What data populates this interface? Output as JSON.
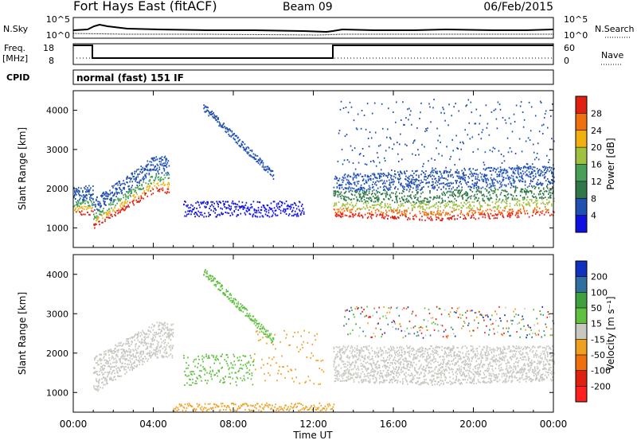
{
  "header": {
    "station": "Fort Hays East (fitACF)",
    "beam": "Beam 09",
    "date": "06/Feb/2015"
  },
  "status_panels": {
    "nsky": {
      "label": "N.Sky",
      "ticks": [
        "10^5",
        "10^0"
      ],
      "right_label": "N.Search",
      "right_ticks": [
        "10^5",
        "10^0"
      ]
    },
    "freq": {
      "label_line1": "Freq.",
      "label_line2": "[MHz]",
      "ticks": [
        "18",
        "8"
      ],
      "right_label": "Nave",
      "right_ticks": [
        "60",
        "0"
      ]
    },
    "cpid": {
      "label": "CPID",
      "value": "normal (fast) 151 IF"
    }
  },
  "chart_data": [
    {
      "type": "heatmap",
      "name": "power",
      "ylabel": "Slant Range [km]",
      "xlabel": "Time UT",
      "x_ticks": [
        "00:00",
        "04:00",
        "08:00",
        "12:00",
        "16:00",
        "20:00",
        "00:00"
      ],
      "y_ticks": [
        "1000",
        "2000",
        "3000",
        "4000"
      ],
      "ylim": [
        500,
        4500
      ],
      "colorbar": {
        "label": "Power [dB]",
        "ticks": [
          "4",
          "8",
          "12",
          "16",
          "20",
          "24",
          "28"
        ],
        "colors": [
          "#1010e0",
          "#2050b0",
          "#307848",
          "#48a058",
          "#a0c040",
          "#f0b010",
          "#f07010",
          "#e02010"
        ]
      }
    },
    {
      "type": "heatmap",
      "name": "velocity",
      "ylabel": "Slant Range [km]",
      "xlabel": "Time UT",
      "x_ticks": [
        "00:00",
        "04:00",
        "08:00",
        "12:00",
        "16:00",
        "20:00",
        "00:00"
      ],
      "y_ticks": [
        "1000",
        "2000",
        "3000",
        "4000"
      ],
      "ylim": [
        500,
        4500
      ],
      "colorbar": {
        "label": "Velocity [m s⁻¹]",
        "ticks": [
          "200",
          "100",
          "50",
          "15",
          "-15",
          "-50",
          "-100",
          "-200"
        ],
        "colors": [
          "#1030c0",
          "#3070a0",
          "#40a040",
          "#60c040",
          "#c8c8c0",
          "#f0a020",
          "#f07010",
          "#e02010",
          "#ff2020"
        ]
      }
    }
  ],
  "x_axis": {
    "label": "Time UT"
  }
}
